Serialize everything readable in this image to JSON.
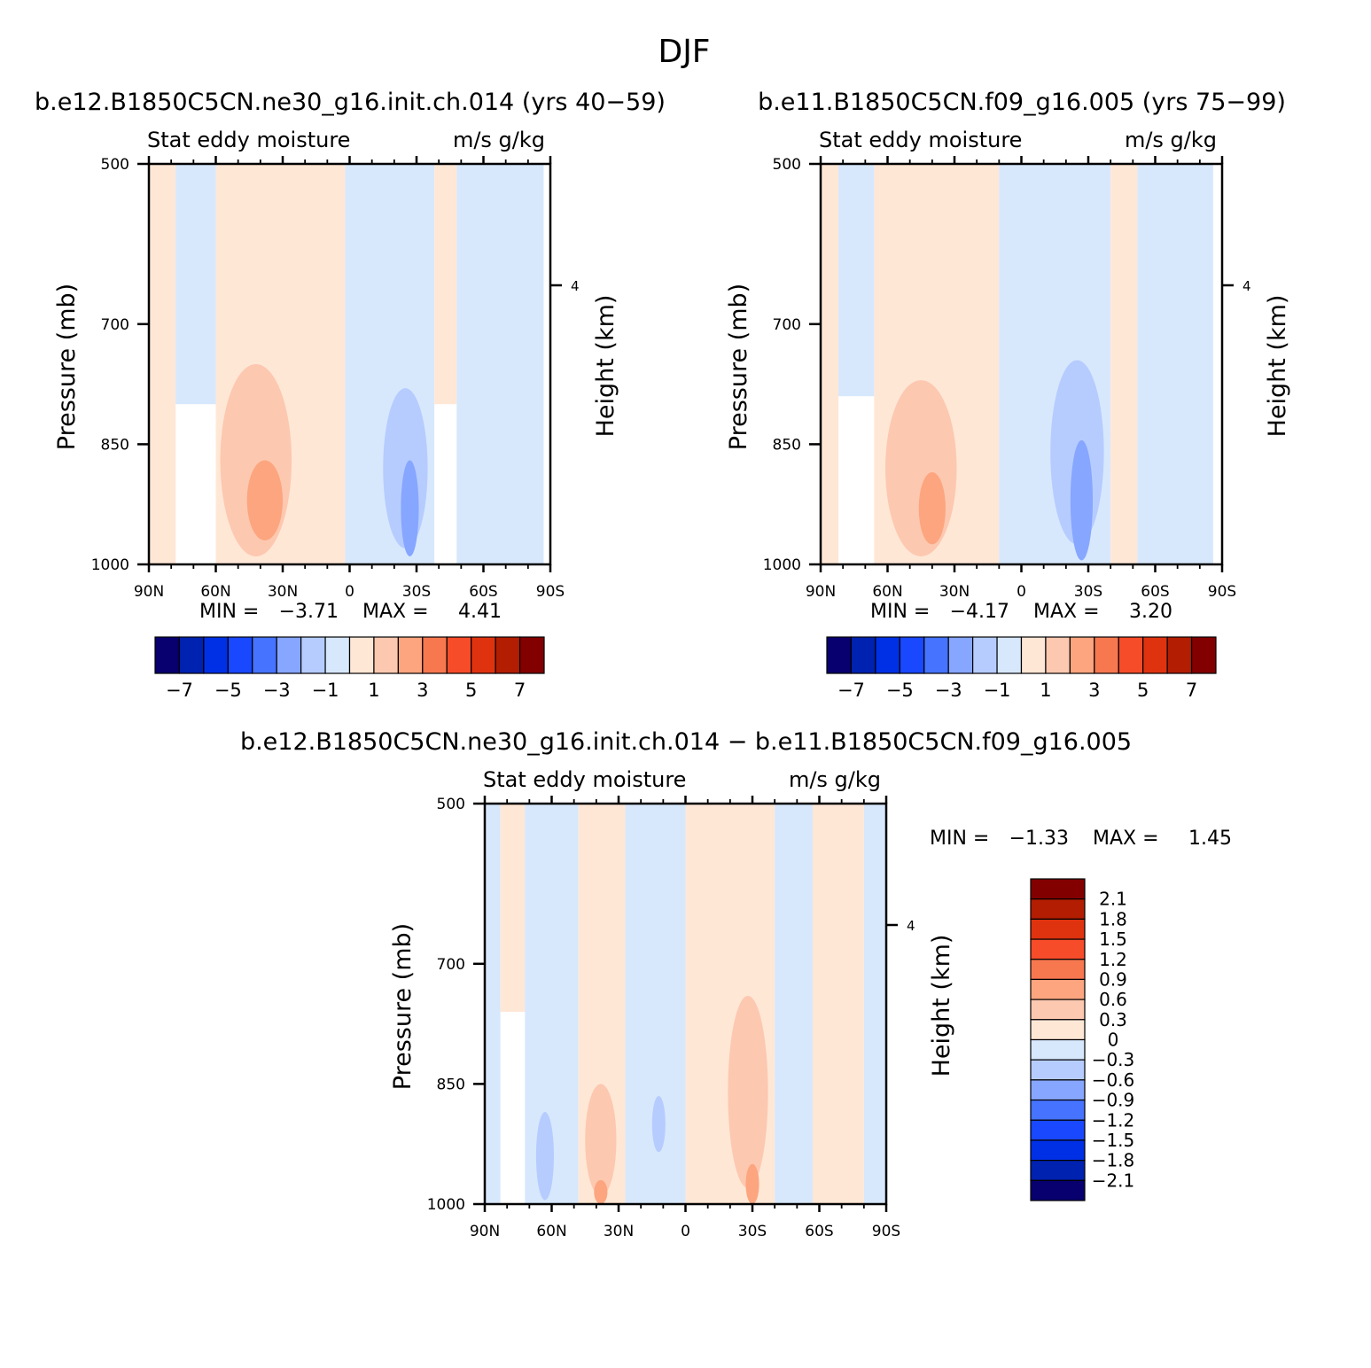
{
  "figure": {
    "title": "DJF"
  },
  "chart_data": [
    {
      "type": "heatmap",
      "title": "b.e12.B1850C5CN.ne30_g16.init.ch.014 (yrs 40-59)",
      "variable": "Stat eddy moisture",
      "units": "m/s g/kg",
      "xlabel": "",
      "ylabel": "Pressure (mb)",
      "y2label": "Height (km)",
      "x_ticks": [
        "90N",
        "60N",
        "30N",
        "0",
        "30S",
        "60S",
        "90S"
      ],
      "x_range": [
        90,
        -90
      ],
      "y_ticks": [
        500,
        700,
        850,
        1000
      ],
      "y_range": [
        500,
        1000
      ],
      "y2_ticks": [
        "4"
      ],
      "min_label": "MIN =",
      "min_value": "-3.71",
      "max_label": "MAX =",
      "max_value": "4.41",
      "colorbar": {
        "levels": [
          -7,
          -6,
          -5,
          -4,
          -3,
          -2,
          -1,
          0,
          1,
          2,
          3,
          4,
          5,
          6,
          7
        ],
        "labels": [
          "-7",
          "-5",
          "-3",
          "-1",
          "1",
          "3",
          "5",
          "7"
        ],
        "colors": [
          "#08006e",
          "#0022b0",
          "#0030e6",
          "#1948ff",
          "#4673ff",
          "#86a6ff",
          "#b6ccff",
          "#d7e8fd",
          "#ffe7d6",
          "#fdc8b0",
          "#fca57f",
          "#f7774f",
          "#f64c2a",
          "#df3310",
          "#b31d02",
          "#830000"
        ]
      },
      "features": [
        {
          "shape": "band",
          "lat_from": 90,
          "lat_to": 78,
          "p_top": 500,
          "p_bottom": 1000,
          "value": 0.5
        },
        {
          "shape": "band",
          "lat_from": 78,
          "lat_to": 60,
          "p_top": 500,
          "p_bottom": 800,
          "value": -0.5
        },
        {
          "shape": "band",
          "lat_from": 60,
          "lat_to": 2,
          "p_top": 500,
          "p_bottom": 1000,
          "value": 0.5
        },
        {
          "shape": "blob",
          "lat": 42,
          "p": 870,
          "dlat": 16,
          "dp": 240,
          "value": 1.5
        },
        {
          "shape": "blob",
          "lat": 38,
          "p": 920,
          "dlat": 8,
          "dp": 100,
          "value": 2.5
        },
        {
          "shape": "band",
          "lat_from": 2,
          "lat_to": -38,
          "p_top": 500,
          "p_bottom": 1000,
          "value": -0.5
        },
        {
          "shape": "blob",
          "lat": -25,
          "p": 880,
          "dlat": 10,
          "dp": 200,
          "value": -1.5
        },
        {
          "shape": "blob",
          "lat": -27,
          "p": 930,
          "dlat": 4,
          "dp": 120,
          "value": -2.5
        },
        {
          "shape": "band",
          "lat_from": -38,
          "lat_to": -48,
          "p_top": 500,
          "p_bottom": 800,
          "value": 0.5
        },
        {
          "shape": "band",
          "lat_from": -48,
          "lat_to": -87,
          "p_top": 500,
          "p_bottom": 1000,
          "value": -0.5
        }
      ]
    },
    {
      "type": "heatmap",
      "title": "b.e11.B1850C5CN.f09_g16.005 (yrs 75-99)",
      "variable": "Stat eddy moisture",
      "units": "m/s g/kg",
      "xlabel": "",
      "ylabel": "Pressure (mb)",
      "y2label": "Height (km)",
      "x_ticks": [
        "90N",
        "60N",
        "30N",
        "0",
        "30S",
        "60S",
        "90S"
      ],
      "x_range": [
        90,
        -90
      ],
      "y_ticks": [
        500,
        700,
        850,
        1000
      ],
      "y_range": [
        500,
        1000
      ],
      "y2_ticks": [
        "4"
      ],
      "min_label": "MIN =",
      "min_value": "-4.17",
      "max_label": "MAX =",
      "max_value": "3.20",
      "colorbar": {
        "levels": [
          -7,
          -6,
          -5,
          -4,
          -3,
          -2,
          -1,
          0,
          1,
          2,
          3,
          4,
          5,
          6,
          7
        ],
        "labels": [
          "-7",
          "-5",
          "-3",
          "-1",
          "1",
          "3",
          "5",
          "7"
        ],
        "colors": [
          "#08006e",
          "#0022b0",
          "#0030e6",
          "#1948ff",
          "#4673ff",
          "#86a6ff",
          "#b6ccff",
          "#d7e8fd",
          "#ffe7d6",
          "#fdc8b0",
          "#fca57f",
          "#f7774f",
          "#f64c2a",
          "#df3310",
          "#b31d02",
          "#830000"
        ]
      },
      "features": [
        {
          "shape": "band",
          "lat_from": 90,
          "lat_to": 82,
          "p_top": 500,
          "p_bottom": 1000,
          "value": 0.5
        },
        {
          "shape": "band",
          "lat_from": 82,
          "lat_to": 66,
          "p_top": 500,
          "p_bottom": 790,
          "value": -0.5
        },
        {
          "shape": "band",
          "lat_from": 66,
          "lat_to": 10,
          "p_top": 500,
          "p_bottom": 1000,
          "value": 0.5
        },
        {
          "shape": "blob",
          "lat": 45,
          "p": 880,
          "dlat": 16,
          "dp": 220,
          "value": 1.5
        },
        {
          "shape": "blob",
          "lat": 40,
          "p": 930,
          "dlat": 6,
          "dp": 90,
          "value": 2.5
        },
        {
          "shape": "band",
          "lat_from": 10,
          "lat_to": -40,
          "p_top": 500,
          "p_bottom": 1000,
          "value": -0.5
        },
        {
          "shape": "blob",
          "lat": -25,
          "p": 860,
          "dlat": 12,
          "dp": 230,
          "value": -1.5
        },
        {
          "shape": "blob",
          "lat": -27,
          "p": 920,
          "dlat": 5,
          "dp": 150,
          "value": -2.5
        },
        {
          "shape": "band",
          "lat_from": -40,
          "lat_to": -52,
          "p_top": 500,
          "p_bottom": 1000,
          "value": 0.5
        },
        {
          "shape": "band",
          "lat_from": -52,
          "lat_to": -86,
          "p_top": 500,
          "p_bottom": 1000,
          "value": -0.5
        }
      ]
    },
    {
      "type": "heatmap",
      "title": "b.e12.B1850C5CN.ne30_g16.init.ch.014 - b.e11.B1850C5CN.f09_g16.005",
      "variable": "Stat eddy moisture",
      "units": "m/s g/kg",
      "xlabel": "",
      "ylabel": "Pressure (mb)",
      "y2label": "Height (km)",
      "x_ticks": [
        "90N",
        "60N",
        "30N",
        "0",
        "30S",
        "60S",
        "90S"
      ],
      "x_range": [
        90,
        -90
      ],
      "y_ticks": [
        500,
        700,
        850,
        1000
      ],
      "y_range": [
        500,
        1000
      ],
      "y2_ticks": [
        "4"
      ],
      "min_label": "MIN =",
      "min_value": "-1.33",
      "max_label": "MAX =",
      "max_value": "1.45",
      "colorbar": {
        "levels": [
          -2.1,
          -1.8,
          -1.5,
          -1.2,
          -0.9,
          -0.6,
          -0.3,
          0,
          0.3,
          0.6,
          0.9,
          1.2,
          1.5,
          1.8,
          2.1
        ],
        "labels": [
          "2.1",
          "1.8",
          "1.5",
          "1.2",
          "0.9",
          "0.6",
          "0.3",
          "0",
          "-0.3",
          "-0.6",
          "-0.9",
          "-1.2",
          "-1.5",
          "-1.8",
          "-2.1"
        ],
        "colors": [
          "#08006e",
          "#0022b0",
          "#0030e6",
          "#1948ff",
          "#4673ff",
          "#86a6ff",
          "#b6ccff",
          "#d7e8fd",
          "#ffe7d6",
          "#fdc8b0",
          "#fca57f",
          "#f7774f",
          "#f64c2a",
          "#df3310",
          "#b31d02",
          "#830000"
        ]
      },
      "features": [
        {
          "shape": "band",
          "lat_from": 90,
          "lat_to": 83,
          "p_top": 500,
          "p_bottom": 1000,
          "value": -0.15
        },
        {
          "shape": "band",
          "lat_from": 83,
          "lat_to": 72,
          "p_top": 500,
          "p_bottom": 760,
          "value": 0.15
        },
        {
          "shape": "band",
          "lat_from": 72,
          "lat_to": 48,
          "p_top": 500,
          "p_bottom": 1000,
          "value": -0.15
        },
        {
          "shape": "blob",
          "lat": 63,
          "p": 940,
          "dlat": 4,
          "dp": 110,
          "value": -0.45
        },
        {
          "shape": "band",
          "lat_from": 48,
          "lat_to": 27,
          "p_top": 500,
          "p_bottom": 1000,
          "value": 0.15
        },
        {
          "shape": "blob",
          "lat": 38,
          "p": 920,
          "dlat": 7,
          "dp": 140,
          "value": 0.45
        },
        {
          "shape": "blob",
          "lat": 38,
          "p": 985,
          "dlat": 3,
          "dp": 30,
          "value": 0.75
        },
        {
          "shape": "band",
          "lat_from": 27,
          "lat_to": 0,
          "p_top": 500,
          "p_bottom": 1000,
          "value": -0.15
        },
        {
          "shape": "blob",
          "lat": 12,
          "p": 900,
          "dlat": 3,
          "dp": 70,
          "value": -0.45
        },
        {
          "shape": "band",
          "lat_from": 0,
          "lat_to": -40,
          "p_top": 500,
          "p_bottom": 1000,
          "value": 0.15
        },
        {
          "shape": "blob",
          "lat": -28,
          "p": 860,
          "dlat": 9,
          "dp": 240,
          "value": 0.45
        },
        {
          "shape": "blob",
          "lat": -30,
          "p": 975,
          "dlat": 3,
          "dp": 50,
          "value": 0.75
        },
        {
          "shape": "band",
          "lat_from": -40,
          "lat_to": -57,
          "p_top": 500,
          "p_bottom": 1000,
          "value": -0.15
        },
        {
          "shape": "band",
          "lat_from": -57,
          "lat_to": -80,
          "p_top": 500,
          "p_bottom": 1000,
          "value": 0.15
        },
        {
          "shape": "band",
          "lat_from": -80,
          "lat_to": -90,
          "p_top": 500,
          "p_bottom": 1000,
          "value": -0.15
        }
      ]
    }
  ]
}
